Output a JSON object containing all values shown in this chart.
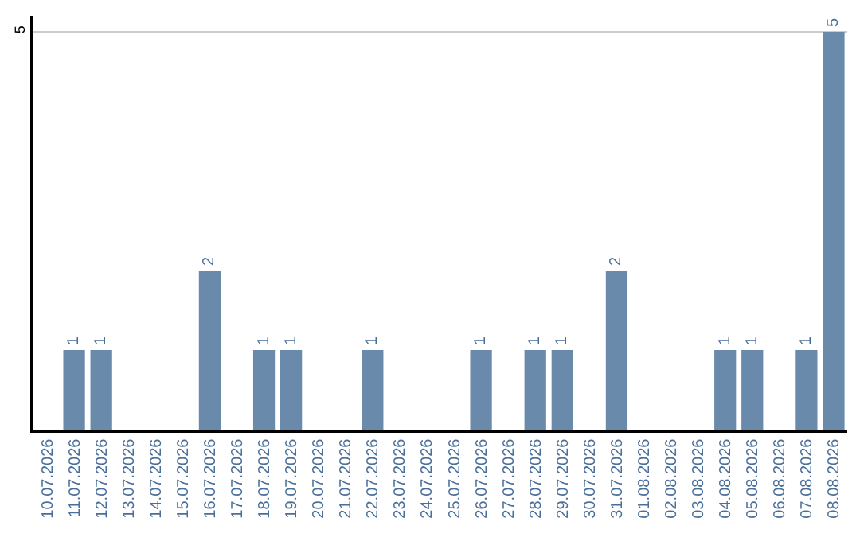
{
  "chart_data": {
    "type": "bar",
    "categories": [
      "10.07.2026",
      "11.07.2026",
      "12.07.2026",
      "13.07.2026",
      "14.07.2026",
      "15.07.2026",
      "16.07.2026",
      "17.07.2026",
      "18.07.2026",
      "19.07.2026",
      "20.07.2026",
      "21.07.2026",
      "22.07.2026",
      "23.07.2026",
      "24.07.2026",
      "25.07.2026",
      "26.07.2026",
      "27.07.2026",
      "28.07.2026",
      "29.07.2026",
      "30.07.2026",
      "31.07.2026",
      "01.08.2026",
      "02.08.2026",
      "03.08.2026",
      "04.08.2026",
      "05.08.2026",
      "06.08.2026",
      "07.08.2026",
      "08.08.2026"
    ],
    "values": [
      0,
      1,
      1,
      0,
      0,
      0,
      2,
      0,
      1,
      1,
      0,
      0,
      1,
      0,
      0,
      0,
      1,
      0,
      1,
      1,
      0,
      2,
      0,
      0,
      0,
      1,
      1,
      0,
      1,
      5
    ],
    "value_labels": [
      null,
      "1",
      "1",
      null,
      null,
      null,
      "2",
      null,
      "1",
      "1",
      null,
      null,
      "1",
      null,
      null,
      null,
      "1",
      null,
      "1",
      "1",
      null,
      "2",
      null,
      null,
      null,
      "1",
      "1",
      null,
      "1",
      "5"
    ],
    "color": "#6a8aac",
    "ylim": [
      0,
      5.2
    ],
    "yticks": [
      5
    ],
    "grid": "y"
  }
}
